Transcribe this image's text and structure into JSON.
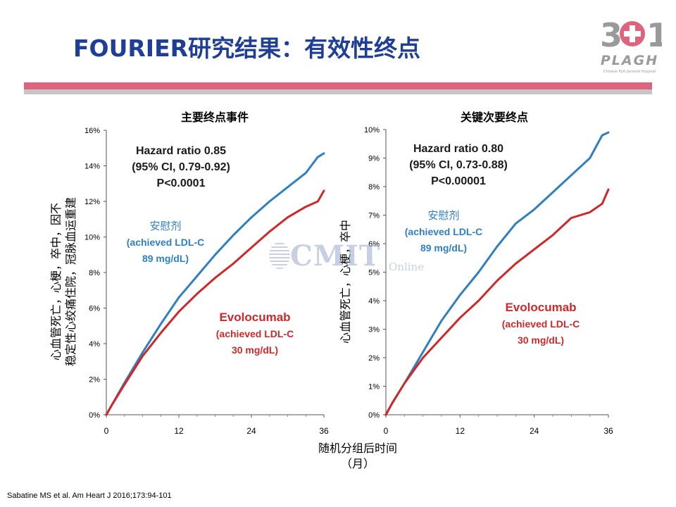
{
  "slide": {
    "title": "FOURIER研究结果：有效性终点",
    "source": "Sabatine MS et al. Am Heart J 2016;173:94-101",
    "logo_text": "PLAGH",
    "logo_subtext": "Chinese PLA General Hospital",
    "watermark_text": "CMIT",
    "watermark_sub": "Online"
  },
  "colors": {
    "title": "#1f3f97",
    "placebo": "#2f7fc3",
    "evolocumab": "#d02828",
    "accent_bar": "#e0637e"
  },
  "chart_data": [
    {
      "type": "line",
      "title": "主要终点事件",
      "ylabel": "心血管死亡，心梗，卒中，因不稳定性心绞痛住院，冠脉血运重建",
      "xlabel": "随机分组后时间（月）",
      "xlim": [
        0,
        36
      ],
      "ylim": [
        0,
        16
      ],
      "xticks": [
        "0",
        "12",
        "24",
        "36"
      ],
      "yticks": [
        "0%",
        "2%",
        "4%",
        "6%",
        "8%",
        "10%",
        "12%",
        "14%",
        "16%"
      ],
      "annotation": [
        "Hazard ratio 0.85",
        "(95% CI, 0.79-0.92)",
        "P<0.0001"
      ],
      "series": [
        {
          "name": "安慰剂",
          "label_lines": [
            "安慰剂",
            "(achieved LDL-C",
            "89 mg/dL)"
          ],
          "x": [
            0,
            1,
            3,
            6,
            9,
            12,
            15,
            18,
            21,
            24,
            27,
            30,
            33,
            35,
            36
          ],
          "values": [
            0,
            0.6,
            1.8,
            3.5,
            5.1,
            6.6,
            7.8,
            9.0,
            10.1,
            11.1,
            12.0,
            12.8,
            13.6,
            14.5,
            14.7
          ]
        },
        {
          "name": "Evolocumab",
          "label_lines": [
            "Evolocumab",
            "(achieved LDL-C",
            "30 mg/dL)"
          ],
          "x": [
            0,
            1,
            3,
            6,
            9,
            12,
            15,
            18,
            21,
            24,
            27,
            30,
            33,
            35,
            36
          ],
          "values": [
            0,
            0.6,
            1.7,
            3.3,
            4.6,
            5.8,
            6.8,
            7.7,
            8.5,
            9.4,
            10.3,
            11.1,
            11.7,
            12.0,
            12.6
          ]
        }
      ]
    },
    {
      "type": "line",
      "title": "关键次要终点",
      "ylabel": "心血管死亡，心梗，卒中",
      "xlabel": "随机分组后时间（月）",
      "xlim": [
        0,
        36
      ],
      "ylim": [
        0,
        10
      ],
      "xticks": [
        "0",
        "12",
        "24",
        "36"
      ],
      "yticks": [
        "0%",
        "1%",
        "2%",
        "3%",
        "4%",
        "5%",
        "6%",
        "7%",
        "8%",
        "9%",
        "10%"
      ],
      "annotation": [
        "Hazard ratio 0.80",
        "(95% CI, 0.73-0.88)",
        "P<0.00001"
      ],
      "series": [
        {
          "name": "安慰剂",
          "label_lines": [
            "安慰剂",
            "(achieved LDL-C",
            "89 mg/dL)"
          ],
          "x": [
            0,
            1,
            3,
            6,
            9,
            12,
            15,
            18,
            21,
            24,
            27,
            30,
            33,
            35,
            36
          ],
          "values": [
            0,
            0.4,
            1.1,
            2.2,
            3.3,
            4.2,
            5.0,
            5.9,
            6.7,
            7.2,
            7.8,
            8.4,
            9.0,
            9.8,
            9.9
          ]
        },
        {
          "name": "Evolocumab",
          "label_lines": [
            "Evolocumab",
            "(achieved LDL-C",
            "30 mg/dL)"
          ],
          "x": [
            0,
            1,
            3,
            6,
            9,
            12,
            15,
            18,
            21,
            24,
            27,
            30,
            33,
            35,
            36
          ],
          "values": [
            0,
            0.4,
            1.1,
            2.0,
            2.7,
            3.4,
            4.0,
            4.7,
            5.3,
            5.8,
            6.3,
            6.9,
            7.1,
            7.4,
            7.9
          ]
        }
      ]
    }
  ]
}
